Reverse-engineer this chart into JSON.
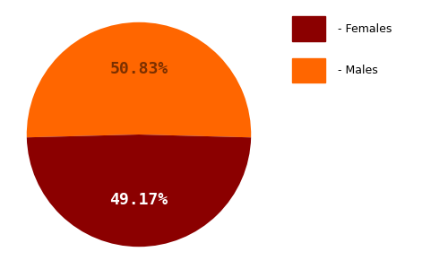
{
  "slices": [
    50.83,
    49.17
  ],
  "labels": [
    "Males",
    "Females"
  ],
  "colors": [
    "#FF6600",
    "#8B0000"
  ],
  "pct_labels": [
    "50.83%",
    "49.17%"
  ],
  "pct_colors": [
    "#7B3000",
    "white"
  ],
  "legend_labels": [
    " - Females",
    " - Males"
  ],
  "legend_colors": [
    "#8B0000",
    "#FF6600"
  ],
  "startangle": 0,
  "background_color": "#ffffff",
  "pct_fontsize": 13
}
